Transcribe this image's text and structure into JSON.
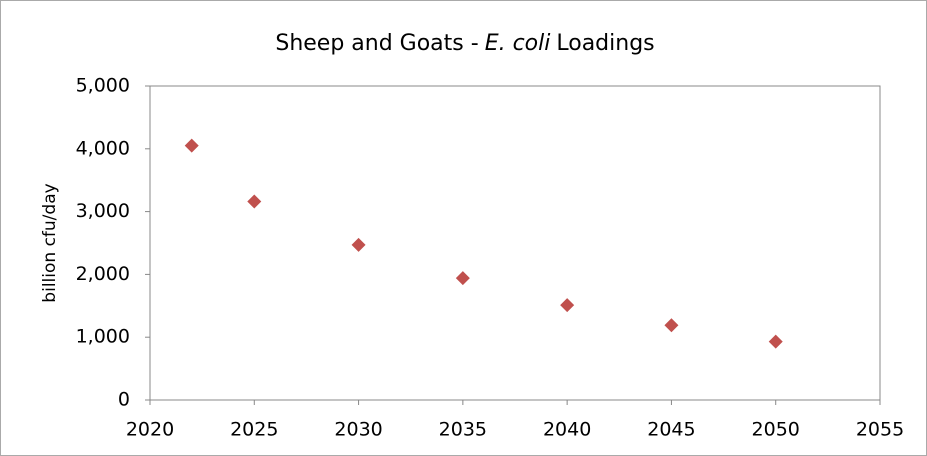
{
  "chart_data": {
    "type": "scatter",
    "title": [
      "Sheep and Goats -",
      "E. coli",
      "Loadings"
    ],
    "y_label": "billion cfu/day",
    "x": [
      2022,
      2025,
      2030,
      2035,
      2040,
      2045,
      2050
    ],
    "series": [
      {
        "color": "#c0504d",
        "values": [
          4050,
          3160,
          2470,
          1940,
          1510,
          1190,
          930
        ]
      }
    ],
    "xlim": [
      2020,
      2055
    ],
    "xticks": [
      2020,
      2025,
      2030,
      2035,
      2040,
      2045,
      2050,
      2055
    ],
    "ylim": [
      0,
      5000
    ],
    "yticks": [
      0,
      {
        "value": 1000,
        "label": "1,000"
      },
      {
        "value": 2000,
        "label": "2,000"
      },
      {
        "value": 3000,
        "label": "3,000"
      },
      {
        "value": 4000,
        "label": "4,000"
      },
      {
        "value": 5000,
        "label": "5,000"
      }
    ],
    "grid": false
  }
}
